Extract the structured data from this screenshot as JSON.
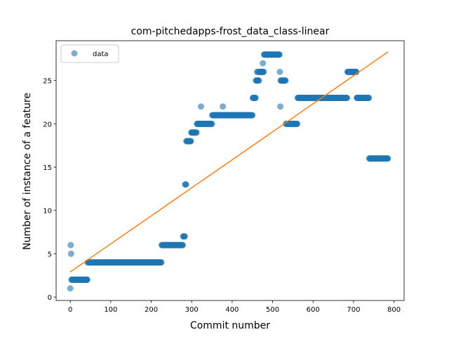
{
  "chart_data": {
    "type": "scatter",
    "title": "com-pitchedapps-frost_data_class-linear",
    "xlabel": "Commit number",
    "ylabel": "Number of instance of a feature",
    "xlim": [
      -35,
      825
    ],
    "ylim": [
      -0.4,
      29.6
    ],
    "xticks": [
      0,
      100,
      200,
      300,
      400,
      500,
      600,
      700,
      800
    ],
    "yticks": [
      0,
      5,
      10,
      15,
      20,
      25
    ],
    "legend": {
      "position": "top-left",
      "entries": [
        "data"
      ]
    },
    "grid": false,
    "colors": {
      "data": "#1f77b4",
      "fit": "#ff7f0e"
    },
    "series": [
      {
        "name": "data",
        "kind": "scatter",
        "segments": [
          {
            "x_start": 0,
            "x_end": 0,
            "y": 1
          },
          {
            "x_start": 1,
            "x_end": 1,
            "y": 6
          },
          {
            "x_start": 2,
            "x_end": 2,
            "y": 5
          },
          {
            "x_start": 3,
            "x_end": 42,
            "y": 2
          },
          {
            "x_start": 43,
            "x_end": 225,
            "y": 4
          },
          {
            "x_start": 226,
            "x_end": 278,
            "y": 6
          },
          {
            "x_start": 279,
            "x_end": 283,
            "y": 7
          },
          {
            "x_start": 284,
            "x_end": 286,
            "y": 13
          },
          {
            "x_start": 287,
            "x_end": 298,
            "y": 18
          },
          {
            "x_start": 299,
            "x_end": 312,
            "y": 19
          },
          {
            "x_start": 313,
            "x_end": 322,
            "y": 20
          },
          {
            "x_start": 323,
            "x_end": 323,
            "y": 22
          },
          {
            "x_start": 324,
            "x_end": 350,
            "y": 20
          },
          {
            "x_start": 351,
            "x_end": 376,
            "y": 21
          },
          {
            "x_start": 377,
            "x_end": 377,
            "y": 22
          },
          {
            "x_start": 378,
            "x_end": 450,
            "y": 21
          },
          {
            "x_start": 451,
            "x_end": 458,
            "y": 23
          },
          {
            "x_start": 459,
            "x_end": 466,
            "y": 25
          },
          {
            "x_start": 462,
            "x_end": 463,
            "y": 26
          },
          {
            "x_start": 467,
            "x_end": 478,
            "y": 26
          },
          {
            "x_start": 476,
            "x_end": 476,
            "y": 27
          },
          {
            "x_start": 479,
            "x_end": 517,
            "y": 28
          },
          {
            "x_start": 518,
            "x_end": 518,
            "y": 26
          },
          {
            "x_start": 519,
            "x_end": 519,
            "y": 22
          },
          {
            "x_start": 520,
            "x_end": 532,
            "y": 25
          },
          {
            "x_start": 533,
            "x_end": 561,
            "y": 20
          },
          {
            "x_start": 562,
            "x_end": 684,
            "y": 23
          },
          {
            "x_start": 685,
            "x_end": 707,
            "y": 26
          },
          {
            "x_start": 708,
            "x_end": 738,
            "y": 23
          },
          {
            "x_start": 739,
            "x_end": 785,
            "y": 16
          }
        ]
      },
      {
        "kind": "line",
        "points": [
          [
            0,
            2.9
          ],
          [
            785,
            28.3
          ]
        ]
      }
    ]
  }
}
